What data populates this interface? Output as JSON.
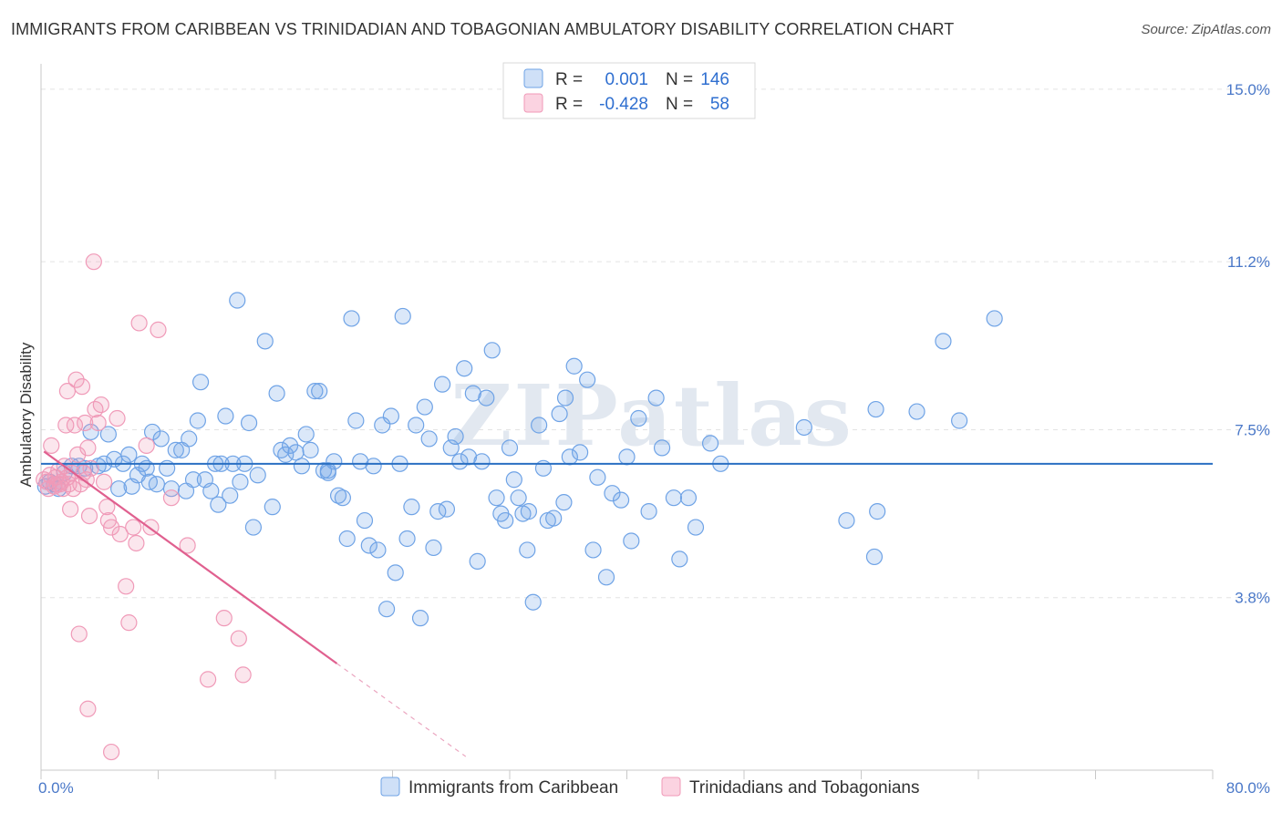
{
  "title": "IMMIGRANTS FROM CARIBBEAN VS TRINIDADIAN AND TOBAGONIAN AMBULATORY DISABILITY CORRELATION CHART",
  "source": "Source: ZipAtlas.com",
  "watermark": "ZIPatlas",
  "colors": {
    "blue": "#6fa3e6",
    "blue_line": "#2a6fc2",
    "pink": "#f09ab8",
    "pink_line": "#e0608f",
    "axis_text": "#4a78c8"
  },
  "legend": {
    "rows": [
      {
        "r_label": "R =",
        "r_value": "0.001",
        "n_label": "N =",
        "n_value": "146"
      },
      {
        "r_label": "R =",
        "r_value": "-0.428",
        "n_label": "N =",
        "n_value": "58"
      }
    ]
  },
  "chart_data": {
    "type": "scatter",
    "title": "IMMIGRANTS FROM CARIBBEAN VS TRINIDADIAN AND TOBAGONIAN AMBULATORY DISABILITY CORRELATION CHART",
    "xlabel": "",
    "ylabel": "Ambulatory Disability",
    "xlim": [
      0,
      80
    ],
    "ylim": [
      0,
      15.4
    ],
    "x_tick_labels": [
      "0.0%",
      "80.0%"
    ],
    "y_ticks": [
      3.8,
      7.5,
      11.2,
      15.0
    ],
    "y_tick_labels": [
      "3.8%",
      "7.5%",
      "11.2%",
      "15.0%"
    ],
    "grid": true,
    "series": [
      {
        "name": "Immigrants from Caribbean",
        "color": "#6fa3e6",
        "trend": {
          "x": [
            0,
            80
          ],
          "y": [
            6.75,
            6.75
          ],
          "dashed_to": null
        },
        "points": [
          [
            0.3,
            6.25
          ],
          [
            0.6,
            6.35
          ],
          [
            0.9,
            6.3
          ],
          [
            1.2,
            6.2
          ],
          [
            1.6,
            6.55
          ],
          [
            2.1,
            6.7
          ],
          [
            2.6,
            6.7
          ],
          [
            3.0,
            6.65
          ],
          [
            3.4,
            7.45
          ],
          [
            3.9,
            6.7
          ],
          [
            4.3,
            6.75
          ],
          [
            4.6,
            7.4
          ],
          [
            5.0,
            6.85
          ],
          [
            5.3,
            6.2
          ],
          [
            5.6,
            6.75
          ],
          [
            6.0,
            6.95
          ],
          [
            6.2,
            6.25
          ],
          [
            6.6,
            6.5
          ],
          [
            6.9,
            6.75
          ],
          [
            7.2,
            6.65
          ],
          [
            7.4,
            6.35
          ],
          [
            7.6,
            7.45
          ],
          [
            7.9,
            6.3
          ],
          [
            8.2,
            7.3
          ],
          [
            8.6,
            6.65
          ],
          [
            8.9,
            6.2
          ],
          [
            9.2,
            7.05
          ],
          [
            9.6,
            7.05
          ],
          [
            9.9,
            6.15
          ],
          [
            10.1,
            7.3
          ],
          [
            10.4,
            6.4
          ],
          [
            10.7,
            7.7
          ],
          [
            10.9,
            8.55
          ],
          [
            11.2,
            6.4
          ],
          [
            11.6,
            6.15
          ],
          [
            11.9,
            6.75
          ],
          [
            12.1,
            5.85
          ],
          [
            12.3,
            6.75
          ],
          [
            12.6,
            7.8
          ],
          [
            12.9,
            6.05
          ],
          [
            13.1,
            6.75
          ],
          [
            13.4,
            10.35
          ],
          [
            13.6,
            6.35
          ],
          [
            13.9,
            6.75
          ],
          [
            14.2,
            7.65
          ],
          [
            14.5,
            5.35
          ],
          [
            14.8,
            6.5
          ],
          [
            15.3,
            9.45
          ],
          [
            15.8,
            5.8
          ],
          [
            16.1,
            8.3
          ],
          [
            16.4,
            7.05
          ],
          [
            16.7,
            6.95
          ],
          [
            17.0,
            7.15
          ],
          [
            17.4,
            7.0
          ],
          [
            17.8,
            6.7
          ],
          [
            18.1,
            7.4
          ],
          [
            18.4,
            7.05
          ],
          [
            18.7,
            8.35
          ],
          [
            19.0,
            8.35
          ],
          [
            19.3,
            6.6
          ],
          [
            19.6,
            6.6
          ],
          [
            20.0,
            6.8
          ],
          [
            20.3,
            6.05
          ],
          [
            20.6,
            6.0
          ],
          [
            20.9,
            5.1
          ],
          [
            21.2,
            9.95
          ],
          [
            21.5,
            7.7
          ],
          [
            21.8,
            6.8
          ],
          [
            22.1,
            5.5
          ],
          [
            22.4,
            4.95
          ],
          [
            22.7,
            6.7
          ],
          [
            23.0,
            4.85
          ],
          [
            23.3,
            7.6
          ],
          [
            23.6,
            3.55
          ],
          [
            23.9,
            7.8
          ],
          [
            24.2,
            4.35
          ],
          [
            24.5,
            6.75
          ],
          [
            24.7,
            10.0
          ],
          [
            25.0,
            5.1
          ],
          [
            25.3,
            5.8
          ],
          [
            25.6,
            7.6
          ],
          [
            25.9,
            3.35
          ],
          [
            26.2,
            8.0
          ],
          [
            26.5,
            7.3
          ],
          [
            26.8,
            4.9
          ],
          [
            27.1,
            5.7
          ],
          [
            27.4,
            8.5
          ],
          [
            27.7,
            5.75
          ],
          [
            28.0,
            7.1
          ],
          [
            28.3,
            7.35
          ],
          [
            28.6,
            6.8
          ],
          [
            28.9,
            8.85
          ],
          [
            29.2,
            6.9
          ],
          [
            29.5,
            8.3
          ],
          [
            29.8,
            4.6
          ],
          [
            30.1,
            6.8
          ],
          [
            30.4,
            8.2
          ],
          [
            30.8,
            9.25
          ],
          [
            31.1,
            6.0
          ],
          [
            31.4,
            5.65
          ],
          [
            31.7,
            5.5
          ],
          [
            32.0,
            7.1
          ],
          [
            32.3,
            6.4
          ],
          [
            32.6,
            6.0
          ],
          [
            32.9,
            5.65
          ],
          [
            33.2,
            4.85
          ],
          [
            33.6,
            3.7
          ],
          [
            34.0,
            7.6
          ],
          [
            34.3,
            6.65
          ],
          [
            34.6,
            5.5
          ],
          [
            35.0,
            5.55
          ],
          [
            35.4,
            7.85
          ],
          [
            35.8,
            8.2
          ],
          [
            36.1,
            6.9
          ],
          [
            36.4,
            8.9
          ],
          [
            36.8,
            7.0
          ],
          [
            37.3,
            8.6
          ],
          [
            37.7,
            4.85
          ],
          [
            38.0,
            6.45
          ],
          [
            38.6,
            4.25
          ],
          [
            39.0,
            6.1
          ],
          [
            39.6,
            5.95
          ],
          [
            40.3,
            5.05
          ],
          [
            40.8,
            7.75
          ],
          [
            42.0,
            8.2
          ],
          [
            42.4,
            7.1
          ],
          [
            43.2,
            6.0
          ],
          [
            43.6,
            4.65
          ],
          [
            44.2,
            6.0
          ],
          [
            44.7,
            5.35
          ],
          [
            45.7,
            7.2
          ],
          [
            46.4,
            6.75
          ],
          [
            52.1,
            7.55
          ],
          [
            55.0,
            5.5
          ],
          [
            56.9,
            4.7
          ],
          [
            57.0,
            7.95
          ],
          [
            57.1,
            5.7
          ],
          [
            59.8,
            7.9
          ],
          [
            61.6,
            9.45
          ],
          [
            62.7,
            7.7
          ],
          [
            65.1,
            9.95
          ],
          [
            33.3,
            5.7
          ],
          [
            35.7,
            5.9
          ],
          [
            40.0,
            6.9
          ],
          [
            41.5,
            5.7
          ],
          [
            19.6,
            6.55
          ]
        ]
      },
      {
        "name": "Trinidadians and Tobagonians",
        "color": "#f09ab8",
        "trend": {
          "x": [
            0.2,
            20.2
          ],
          "y": [
            7.02,
            2.35
          ],
          "dashed_to": [
            29.0,
            0.3
          ]
        },
        "points": [
          [
            0.2,
            6.4
          ],
          [
            0.4,
            6.35
          ],
          [
            0.5,
            6.2
          ],
          [
            0.6,
            6.5
          ],
          [
            0.7,
            7.15
          ],
          [
            0.9,
            6.25
          ],
          [
            1.0,
            6.45
          ],
          [
            1.1,
            6.3
          ],
          [
            1.2,
            6.6
          ],
          [
            1.3,
            6.3
          ],
          [
            1.4,
            6.35
          ],
          [
            1.5,
            6.2
          ],
          [
            1.6,
            6.7
          ],
          [
            1.7,
            7.6
          ],
          [
            1.8,
            8.35
          ],
          [
            1.8,
            6.45
          ],
          [
            1.9,
            6.3
          ],
          [
            2.0,
            5.75
          ],
          [
            2.1,
            6.55
          ],
          [
            2.2,
            6.2
          ],
          [
            2.3,
            7.6
          ],
          [
            2.4,
            8.6
          ],
          [
            2.5,
            6.95
          ],
          [
            2.7,
            6.3
          ],
          [
            2.8,
            8.45
          ],
          [
            2.9,
            6.55
          ],
          [
            3.0,
            7.65
          ],
          [
            3.1,
            6.4
          ],
          [
            3.2,
            7.1
          ],
          [
            3.3,
            5.6
          ],
          [
            3.4,
            6.65
          ],
          [
            3.6,
            11.2
          ],
          [
            3.7,
            7.95
          ],
          [
            3.9,
            7.65
          ],
          [
            4.1,
            8.05
          ],
          [
            4.3,
            6.35
          ],
          [
            4.5,
            5.8
          ],
          [
            4.6,
            5.5
          ],
          [
            4.8,
            5.35
          ],
          [
            5.2,
            7.75
          ],
          [
            5.4,
            5.2
          ],
          [
            5.8,
            4.05
          ],
          [
            6.0,
            3.25
          ],
          [
            6.3,
            5.35
          ],
          [
            6.5,
            5.0
          ],
          [
            6.7,
            9.85
          ],
          [
            7.2,
            7.15
          ],
          [
            7.5,
            5.35
          ],
          [
            8.0,
            9.7
          ],
          [
            8.9,
            6.0
          ],
          [
            10.0,
            4.95
          ],
          [
            11.4,
            2.0
          ],
          [
            12.5,
            3.35
          ],
          [
            13.5,
            2.9
          ],
          [
            13.8,
            2.1
          ],
          [
            2.6,
            3.0
          ],
          [
            3.2,
            1.35
          ],
          [
            4.8,
            0.4
          ]
        ]
      }
    ]
  },
  "bottom_legend": {
    "items": [
      {
        "label": "Immigrants from Caribbean"
      },
      {
        "label": "Trinidadians and Tobagonians"
      }
    ]
  }
}
